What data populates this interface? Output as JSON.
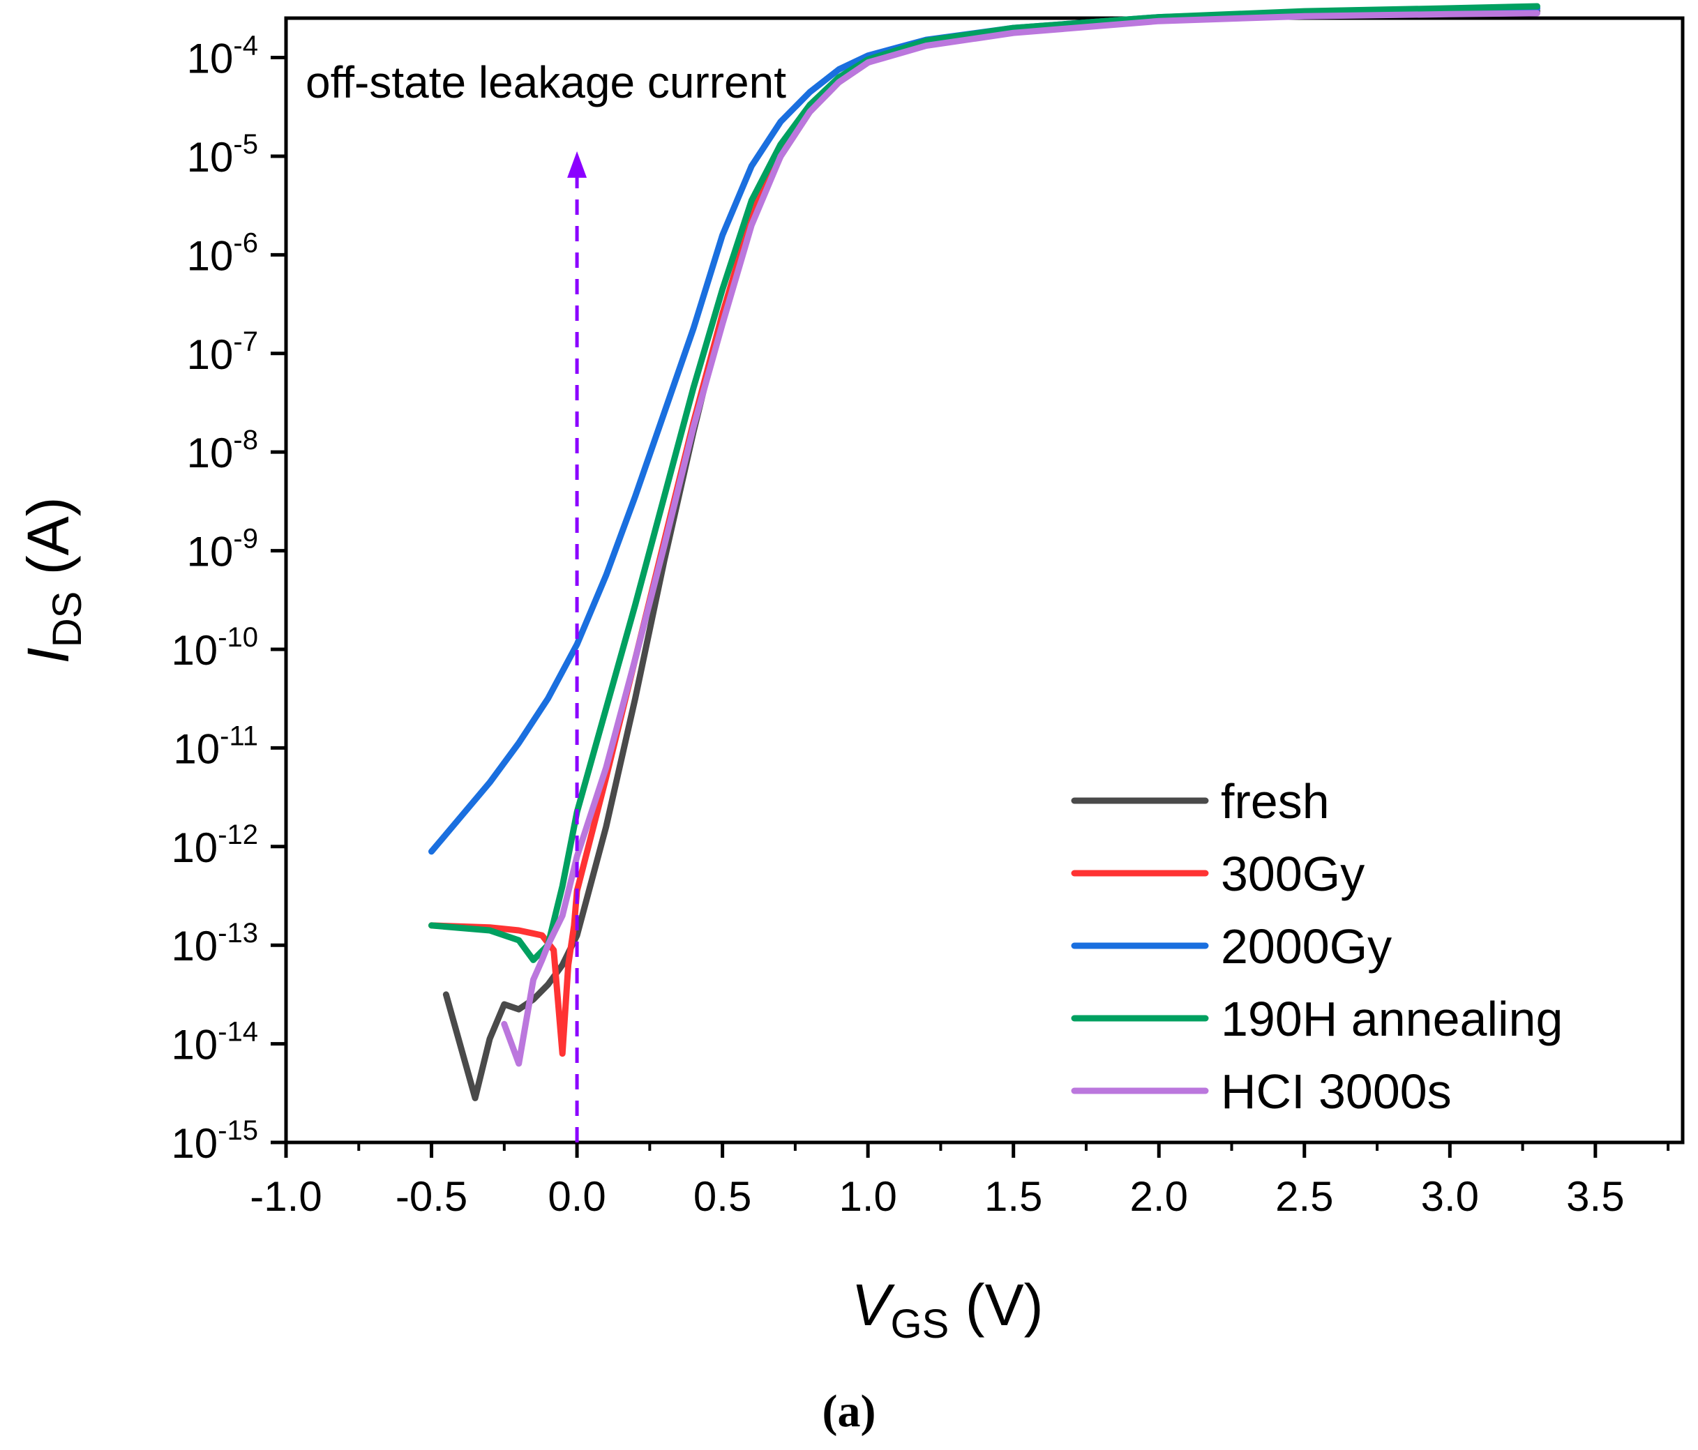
{
  "chart_data": {
    "type": "line",
    "title": "",
    "xlabel": {
      "main": "V",
      "sub": "GS",
      "unit": " (V)"
    },
    "ylabel": {
      "main": "I",
      "sub": "DS",
      "unit": " (A)"
    },
    "xlim": [
      -1.0,
      3.8
    ],
    "ylim_log10": [
      -15,
      -3.6
    ],
    "y_scale": "log",
    "x_ticks": [
      "-1.0",
      "-0.5",
      "0.0",
      "0.5",
      "1.0",
      "1.5",
      "2.0",
      "2.5",
      "3.0",
      "3.5"
    ],
    "y_ticks": [
      {
        "base": "10",
        "exp": "-4"
      },
      {
        "base": "10",
        "exp": "-5"
      },
      {
        "base": "10",
        "exp": "-6"
      },
      {
        "base": "10",
        "exp": "-7"
      },
      {
        "base": "10",
        "exp": "-8"
      },
      {
        "base": "10",
        "exp": "-9"
      },
      {
        "base": "10",
        "exp": "-10"
      },
      {
        "base": "10",
        "exp": "-11"
      },
      {
        "base": "10",
        "exp": "-12"
      },
      {
        "base": "10",
        "exp": "-13"
      },
      {
        "base": "10",
        "exp": "-14"
      },
      {
        "base": "10",
        "exp": "-15"
      }
    ],
    "legend_position": "bottom-right",
    "annotation": {
      "text": "off-state leakage current",
      "color": "#8B00FF",
      "arrow_x": 0.0,
      "arrow_from_log10": -15,
      "arrow_to_log10": -4.95
    },
    "caption": "(a)",
    "series": [
      {
        "name": "fresh",
        "color": "#4a4a4a",
        "x": [
          -0.45,
          -0.35,
          -0.3,
          -0.25,
          -0.2,
          -0.15,
          -0.1,
          -0.05,
          0.0,
          0.1,
          0.2,
          0.3,
          0.4,
          0.5,
          0.6,
          0.7,
          0.8,
          0.9,
          1.0,
          1.2,
          1.5,
          2.0,
          2.5,
          3.0,
          3.3
        ],
        "log10": [
          -13.5,
          -14.55,
          -13.95,
          -13.6,
          -13.65,
          -13.55,
          -13.4,
          -13.2,
          -12.9,
          -11.8,
          -10.5,
          -9.1,
          -7.8,
          -6.6,
          -5.65,
          -5.0,
          -4.55,
          -4.25,
          -4.05,
          -3.85,
          -3.72,
          -3.62,
          -3.57,
          -3.54,
          -3.53
        ]
      },
      {
        "name": "300Gy",
        "color": "#ff3333",
        "x": [
          -0.5,
          -0.3,
          -0.2,
          -0.12,
          -0.08,
          -0.05,
          -0.03,
          -0.01,
          0.0,
          0.1,
          0.2,
          0.3,
          0.4,
          0.5,
          0.6,
          0.7,
          0.8,
          0.9,
          1.0,
          1.2,
          1.5,
          2.0,
          2.5,
          3.0,
          3.3
        ],
        "log10": [
          -12.8,
          -12.82,
          -12.85,
          -12.9,
          -13.05,
          -14.1,
          -13.2,
          -12.8,
          -12.45,
          -11.3,
          -10.1,
          -8.9,
          -7.7,
          -6.6,
          -5.6,
          -4.95,
          -4.52,
          -4.23,
          -4.03,
          -3.84,
          -3.71,
          -3.6,
          -3.54,
          -3.51,
          -3.5
        ]
      },
      {
        "name": "2000Gy",
        "color": "#1a6fdf",
        "x": [
          -0.5,
          -0.4,
          -0.3,
          -0.2,
          -0.1,
          0.0,
          0.1,
          0.2,
          0.3,
          0.4,
          0.5,
          0.6,
          0.7,
          0.8,
          0.9,
          1.0,
          1.2,
          1.5,
          2.0,
          2.5,
          3.0,
          3.3
        ],
        "log10": [
          -12.05,
          -11.7,
          -11.35,
          -10.95,
          -10.5,
          -9.95,
          -9.25,
          -8.45,
          -7.6,
          -6.75,
          -5.8,
          -5.1,
          -4.65,
          -4.35,
          -4.12,
          -3.98,
          -3.82,
          -3.7,
          -3.59,
          -3.54,
          -3.51,
          -3.5
        ]
      },
      {
        "name": "190H annealing",
        "color": "#00a060",
        "x": [
          -0.5,
          -0.3,
          -0.2,
          -0.15,
          -0.1,
          -0.05,
          0.0,
          0.1,
          0.2,
          0.3,
          0.4,
          0.5,
          0.6,
          0.7,
          0.8,
          0.9,
          1.0,
          1.2,
          1.5,
          2.0,
          2.5,
          3.0,
          3.3
        ],
        "log10": [
          -12.8,
          -12.85,
          -12.95,
          -13.15,
          -13.0,
          -12.4,
          -11.65,
          -10.6,
          -9.55,
          -8.45,
          -7.35,
          -6.35,
          -5.45,
          -4.88,
          -4.48,
          -4.2,
          -4.02,
          -3.83,
          -3.7,
          -3.59,
          -3.53,
          -3.5,
          -3.48
        ]
      },
      {
        "name": "HCI 3000s",
        "color": "#bb77dd",
        "x": [
          -0.25,
          -0.2,
          -0.15,
          -0.12,
          -0.1,
          -0.05,
          0.0,
          0.1,
          0.2,
          0.3,
          0.4,
          0.5,
          0.6,
          0.7,
          0.8,
          0.9,
          1.0,
          1.2,
          1.5,
          2.0,
          2.5,
          3.0,
          3.3
        ],
        "log10": [
          -13.8,
          -14.2,
          -13.35,
          -13.15,
          -13.0,
          -12.7,
          -12.1,
          -11.2,
          -10.1,
          -8.95,
          -7.75,
          -6.7,
          -5.7,
          -5.0,
          -4.55,
          -4.25,
          -4.05,
          -3.88,
          -3.75,
          -3.63,
          -3.58,
          -3.56,
          -3.55
        ]
      }
    ]
  }
}
